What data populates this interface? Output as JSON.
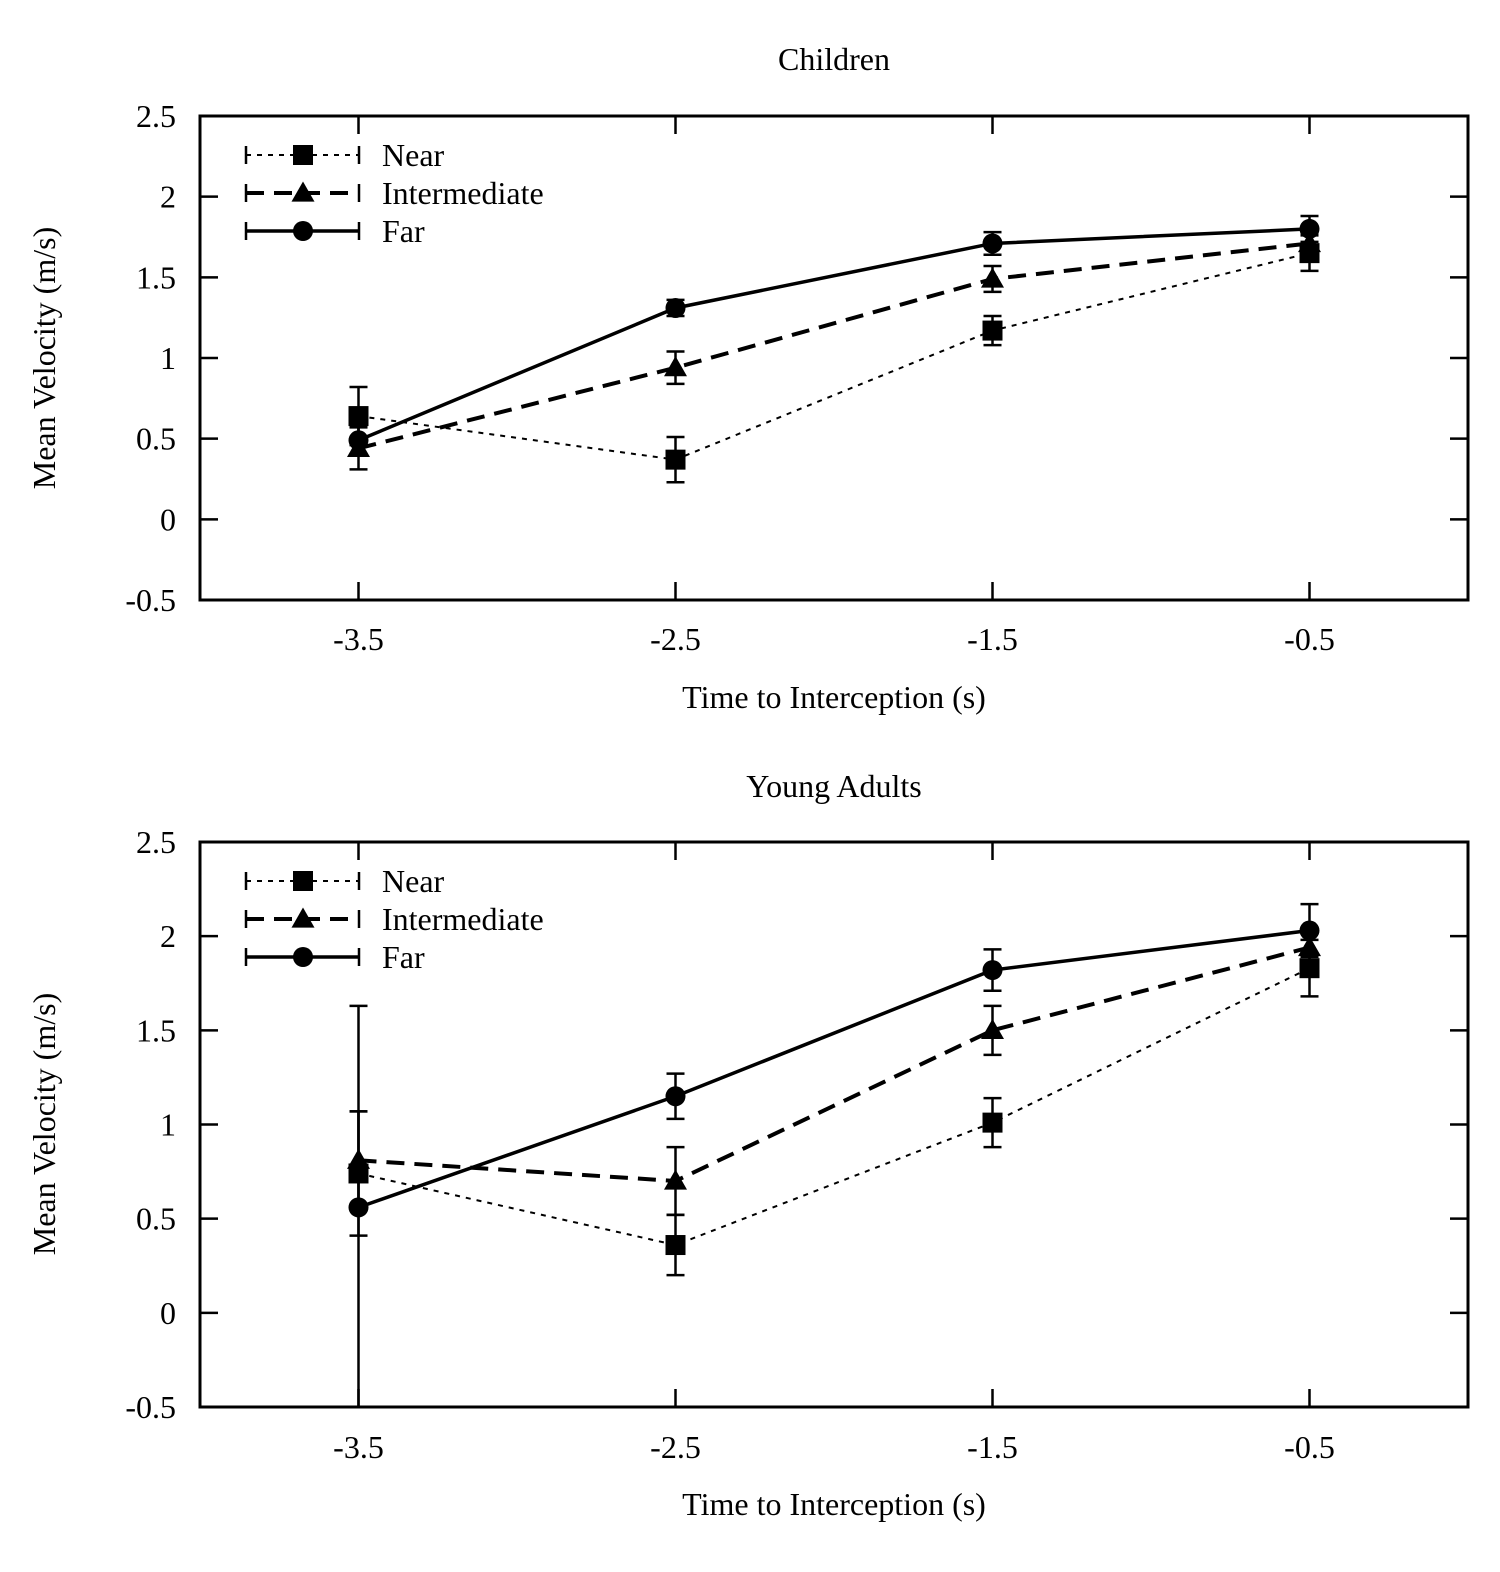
{
  "chart_data": [
    {
      "type": "line",
      "title": "Children",
      "xlabel": "Time to Interception (s)",
      "ylabel": "Mean Velocity (m/s)",
      "xlim": [
        -4.0,
        0.0
      ],
      "ylim": [
        -0.5,
        2.5
      ],
      "xticks": [
        -3.5,
        -2.5,
        -1.5,
        -0.5
      ],
      "xtick_labels": [
        "-3.5",
        "-2.5",
        "-1.5",
        "-0.5"
      ],
      "yticks": [
        -0.5,
        0,
        0.5,
        1,
        1.5,
        2,
        2.5
      ],
      "ytick_labels": [
        "-0.5",
        "0",
        "0.5",
        "1",
        "1.5",
        "2",
        "2.5"
      ],
      "grid": false,
      "legend_position": "top-left",
      "x": [
        -3.5,
        -2.5,
        -1.5,
        -0.5
      ],
      "series": [
        {
          "name": "Near",
          "style": "dotted",
          "marker": "square",
          "values": [
            0.64,
            0.37,
            1.17,
            1.65
          ],
          "errors": [
            0.18,
            0.14,
            0.09,
            0.11
          ]
        },
        {
          "name": "Intermediate",
          "style": "dashed",
          "marker": "triangle",
          "values": [
            0.44,
            0.94,
            1.49,
            1.71
          ],
          "errors": [
            0.13,
            0.1,
            0.08,
            0.06
          ]
        },
        {
          "name": "Far",
          "style": "solid",
          "marker": "circle",
          "values": [
            0.49,
            1.31,
            1.71,
            1.8
          ],
          "errors": [
            0.09,
            0.05,
            0.07,
            0.08
          ]
        }
      ]
    },
    {
      "type": "line",
      "title": "Young Adults",
      "xlabel": "Time to Interception (s)",
      "ylabel": "Mean Velocity (m/s)",
      "xlim": [
        -4.0,
        0.0
      ],
      "ylim": [
        -0.5,
        2.5
      ],
      "xticks": [
        -3.5,
        -2.5,
        -1.5,
        -0.5
      ],
      "xtick_labels": [
        "-3.5",
        "-2.5",
        "-1.5",
        "-0.5"
      ],
      "yticks": [
        -0.5,
        0,
        0.5,
        1,
        1.5,
        2,
        2.5
      ],
      "ytick_labels": [
        "-0.5",
        "0",
        "0.5",
        "1",
        "1.5",
        "2",
        "2.5"
      ],
      "grid": false,
      "legend_position": "top-left",
      "x": [
        -3.5,
        -2.5,
        -1.5,
        -0.5
      ],
      "series": [
        {
          "name": "Near",
          "style": "dotted",
          "marker": "square",
          "values": [
            0.74,
            0.36,
            1.01,
            1.83
          ],
          "errors": [
            0.33,
            0.16,
            0.13,
            0.15
          ]
        },
        {
          "name": "Intermediate",
          "style": "dashed",
          "marker": "triangle",
          "values": [
            0.81,
            0.7,
            1.5,
            1.94
          ],
          "errors": [
            0.26,
            0.18,
            0.13,
            0.08
          ]
        },
        {
          "name": "Far",
          "style": "solid",
          "marker": "circle",
          "values": [
            0.56,
            1.15,
            1.82,
            2.03
          ],
          "errors": [
            1.07,
            0.12,
            0.11,
            0.14
          ]
        }
      ]
    }
  ]
}
